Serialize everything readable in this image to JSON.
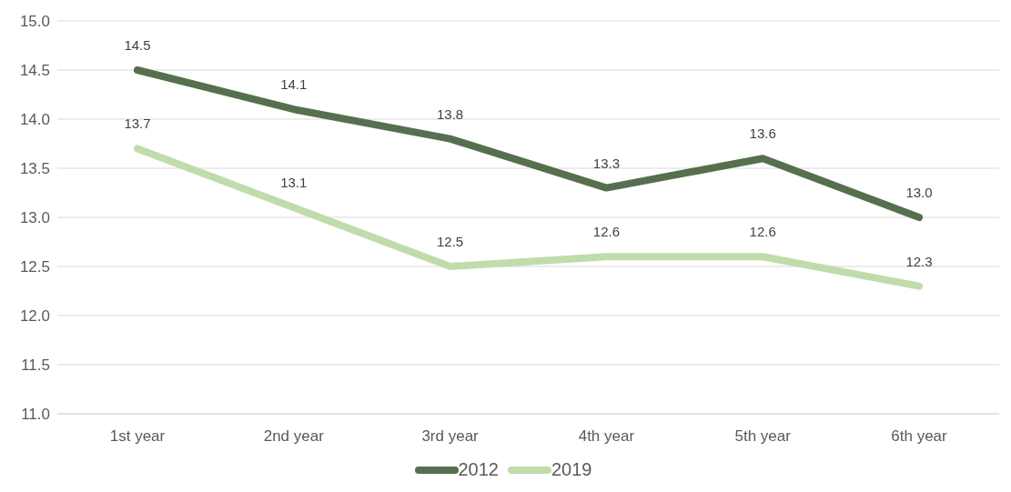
{
  "chart_data": {
    "type": "line",
    "categories": [
      "1st year",
      "2nd year",
      "3rd year",
      "4th year",
      "5th year",
      "6th year"
    ],
    "series": [
      {
        "name": "2012",
        "color": "#56704f",
        "values": [
          14.5,
          14.1,
          13.8,
          13.3,
          13.6,
          13.0
        ],
        "value_labels": [
          "14.5",
          "14.1",
          "13.8",
          "13.3",
          "13.6",
          "13.0"
        ]
      },
      {
        "name": "2019",
        "color": "#c0dcab",
        "values": [
          13.7,
          13.1,
          12.5,
          12.6,
          12.6,
          12.3
        ],
        "value_labels": [
          "13.7",
          "13.1",
          "12.5",
          "12.6",
          "12.6",
          "12.3"
        ]
      }
    ],
    "ylim": [
      11,
      15
    ],
    "yticks": [
      {
        "value": 11,
        "label": "11.0"
      },
      {
        "value": 11.5,
        "label": "11.5"
      },
      {
        "value": 12,
        "label": "12.0"
      },
      {
        "value": 12.5,
        "label": "12.5"
      },
      {
        "value": 13,
        "label": "13.0"
      },
      {
        "value": 13.5,
        "label": "13.5"
      },
      {
        "value": 14,
        "label": "14.0"
      },
      {
        "value": 14.5,
        "label": "14.5"
      },
      {
        "value": 15,
        "label": "15.0"
      }
    ],
    "grid": "y",
    "legend": "bottom",
    "marker": "none",
    "line_style": "solid"
  }
}
